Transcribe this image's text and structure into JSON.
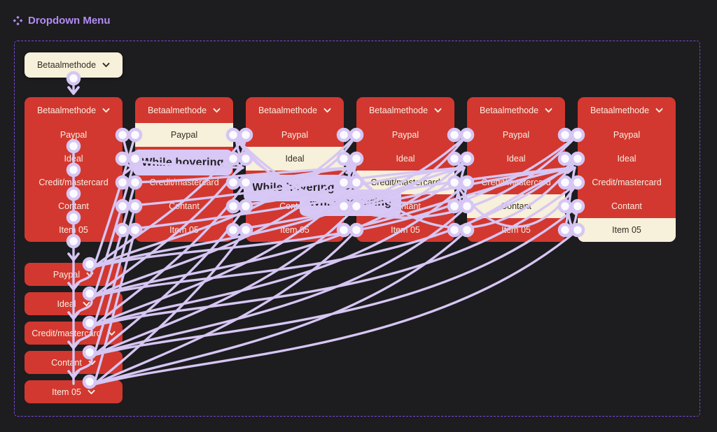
{
  "page": {
    "title": "Dropdown Menu",
    "title_icon": "component-set-icon"
  },
  "colors": {
    "canvas": "#1d1c1f",
    "red": "#d2382f",
    "cream": "#f7f0da",
    "wire": "#d6c6f3",
    "node_fill": "#fbfaff",
    "label_bg": "#d8c8f5",
    "label_text": "#232028",
    "frame_border": "#7a4cd9",
    "title_purple": "#b18cf2",
    "text_on_red": "#f7eee4",
    "text_on_cream": "#332e26"
  },
  "component": {
    "trigger_label": "Betaalmethode",
    "menu_header": "Betaalmethode",
    "menu_items": [
      "Paypal",
      "Ideal",
      "Credit/mastercard",
      "Contant",
      "Item 05"
    ],
    "open_variants": [
      {
        "name": "open-default",
        "highlighted_index": -1
      },
      {
        "name": "open-hover-paypal",
        "highlighted_index": 0
      },
      {
        "name": "open-hover-ideal",
        "highlighted_index": 1
      },
      {
        "name": "open-hover-credit-mastercard",
        "highlighted_index": 2
      },
      {
        "name": "open-hover-contant",
        "highlighted_index": 3
      },
      {
        "name": "open-hover-item-05",
        "highlighted_index": 4
      }
    ],
    "closed_variants": [
      "Paypal",
      "Ideal",
      "Credit/mastercard",
      "Contant",
      "Item 05"
    ],
    "interaction_labels": [
      "While hovering",
      "While hovering",
      "While hovering"
    ]
  }
}
